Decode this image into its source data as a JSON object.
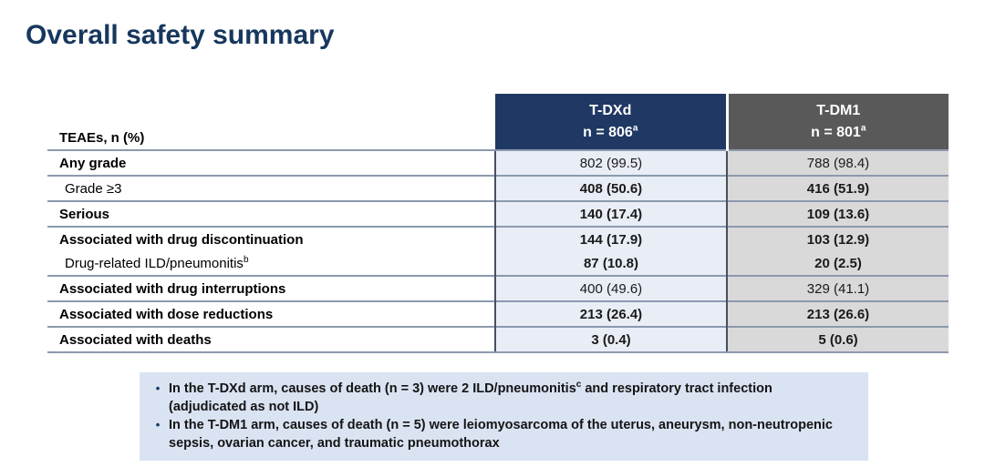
{
  "title": "Overall safety summary",
  "colors": {
    "title_navy": "#17375d",
    "header_tdxd_bg": "#1f3864",
    "header_tdm1_bg": "#595959",
    "column_tdxd_bg": "#e9edf6",
    "column_tdm1_bg": "#d9d9d9",
    "row_divider": "#8b99ad",
    "column_border": "#47505e",
    "notes_bg": "#dae3f2"
  },
  "table": {
    "row_header_label": "TEAEs, n (%)",
    "columns": [
      {
        "name": "T-DXd",
        "n_label": "n = 806",
        "n_sup": "a"
      },
      {
        "name": "T-DM1",
        "n_label": "n = 801",
        "n_sup": "a"
      }
    ],
    "rows": [
      {
        "label": "Any grade",
        "label_sup": "",
        "indent": false,
        "label_bold": true,
        "values_bold": false,
        "group_start": true,
        "values": [
          "802 (99.5)",
          "788 (98.4)"
        ]
      },
      {
        "label": "Grade ≥3",
        "label_sup": "",
        "indent": true,
        "label_bold": false,
        "values_bold": true,
        "group_start": true,
        "values": [
          "408 (50.6)",
          "416 (51.9)"
        ]
      },
      {
        "label": "Serious",
        "label_sup": "",
        "indent": false,
        "label_bold": true,
        "values_bold": true,
        "group_start": true,
        "values": [
          "140 (17.4)",
          "109 (13.6)"
        ]
      },
      {
        "label": "Associated with drug discontinuation",
        "label_sup": "",
        "indent": false,
        "label_bold": true,
        "values_bold": true,
        "group_start": true,
        "values": [
          "144 (17.9)",
          "103 (12.9)"
        ]
      },
      {
        "label": "Drug-related ILD/pneumonitis",
        "label_sup": "b",
        "indent": true,
        "label_bold": false,
        "values_bold": true,
        "group_start": false,
        "values": [
          "87 (10.8)",
          "20 (2.5)"
        ]
      },
      {
        "label": "Associated with drug interruptions",
        "label_sup": "",
        "indent": false,
        "label_bold": true,
        "values_bold": false,
        "group_start": true,
        "values": [
          "400 (49.6)",
          "329 (41.1)"
        ]
      },
      {
        "label": "Associated with dose reductions",
        "label_sup": "",
        "indent": false,
        "label_bold": true,
        "values_bold": true,
        "group_start": true,
        "values": [
          "213 (26.4)",
          "213 (26.6)"
        ]
      },
      {
        "label": "Associated with deaths",
        "label_sup": "",
        "indent": false,
        "label_bold": true,
        "values_bold": true,
        "group_start": true,
        "values": [
          "3 (0.4)",
          "5 (0.6)"
        ]
      }
    ]
  },
  "notes": {
    "bullet_glyph": "•",
    "bullets": [
      {
        "parts": [
          {
            "text": "In the T-DXd arm, causes of death (n = 3) were 2 ILD/pneumonitis"
          },
          {
            "text": "c",
            "sup": true
          },
          {
            "text": " and respiratory tract infection (adjudicated as not ILD)"
          }
        ]
      },
      {
        "parts": [
          {
            "text": "In the T-DM1 arm, causes of death (n = 5) were leiomyosarcoma of the uterus, aneurysm, non-neutropenic sepsis, ovarian cancer, and traumatic pneumothorax"
          }
        ]
      }
    ]
  }
}
